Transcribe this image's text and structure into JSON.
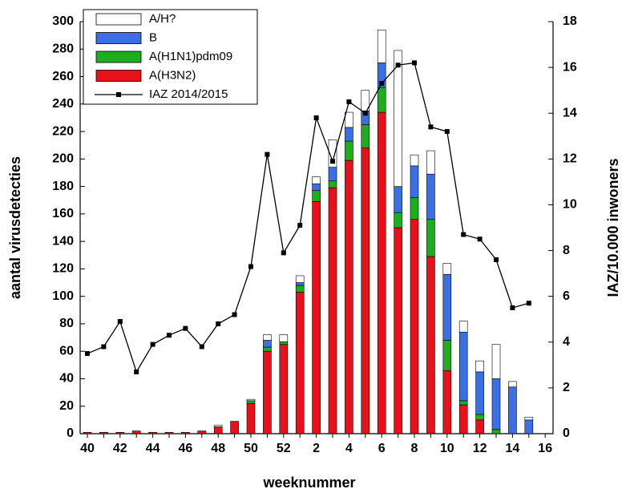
{
  "chart_data": {
    "type": "bar",
    "stacked": true,
    "x_label": "weeknummer",
    "y_label": "aantal virusdetecties",
    "y2_label": "IAZ/10.000 inwoners",
    "categories": [
      40,
      null,
      42,
      null,
      44,
      null,
      46,
      null,
      48,
      null,
      50,
      null,
      52,
      null,
      2,
      null,
      4,
      null,
      6,
      null,
      8,
      null,
      10,
      null,
      12,
      null,
      14,
      null,
      16
    ],
    "series": [
      {
        "name": "A(H3N2)",
        "color": "#e8111a",
        "values": [
          1,
          1,
          1,
          2,
          1,
          1,
          1,
          2,
          5,
          9,
          22,
          60,
          65,
          103,
          169,
          179,
          199,
          208,
          234,
          150,
          156,
          129,
          46,
          21,
          10,
          0,
          0,
          0,
          null
        ]
      },
      {
        "name": "A(H1N1)pdm09",
        "color": "#1cae1c",
        "values": [
          0,
          0,
          0,
          0,
          0,
          0,
          0,
          0,
          0,
          0,
          2,
          3,
          2,
          5,
          8,
          5,
          14,
          17,
          18,
          11,
          16,
          27,
          22,
          3,
          4,
          3,
          0,
          0,
          null
        ]
      },
      {
        "name": "B",
        "color": "#3b6fe6",
        "values": [
          0,
          0,
          0,
          0,
          0,
          0,
          0,
          0,
          0,
          0,
          0,
          5,
          0,
          2,
          5,
          10,
          10,
          10,
          18,
          19,
          23,
          33,
          48,
          50,
          31,
          37,
          34,
          10,
          null
        ]
      },
      {
        "name": "A/H?",
        "color": "#ffffff",
        "values": [
          0,
          0,
          0,
          0,
          0,
          0,
          0,
          0,
          1,
          0,
          1,
          4,
          5,
          5,
          5,
          20,
          11,
          15,
          24,
          99,
          8,
          17,
          8,
          8,
          8,
          25,
          4,
          2,
          null
        ]
      },
      {
        "name": "IAZ 2014/2015",
        "color": "#000000",
        "type": "line",
        "axis": "y2",
        "values": [
          3.5,
          3.8,
          4.9,
          2.7,
          3.9,
          4.3,
          4.6,
          3.8,
          4.8,
          5.2,
          7.3,
          12.2,
          7.9,
          9.1,
          13.8,
          11.9,
          14.5,
          14.0,
          15.3,
          16.1,
          16.2,
          13.4,
          13.2,
          8.7,
          8.5,
          7.6,
          5.5,
          5.7,
          null
        ]
      }
    ],
    "ylim": [
      0,
      300
    ],
    "yticks": [
      0,
      20,
      40,
      60,
      80,
      100,
      120,
      140,
      160,
      180,
      200,
      220,
      240,
      260,
      280,
      300
    ],
    "y2lim": [
      0,
      18
    ],
    "y2ticks": [
      0,
      2,
      4,
      6,
      8,
      10,
      12,
      14,
      16,
      18
    ],
    "legend": "top-left"
  }
}
